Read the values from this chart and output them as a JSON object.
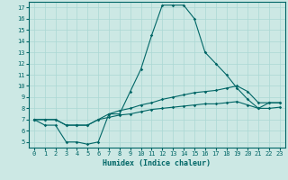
{
  "xlabel": "Humidex (Indice chaleur)",
  "ylabel": "",
  "background_color": "#cce8e4",
  "line_color": "#006666",
  "grid_color": "#aad8d4",
  "xlim": [
    -0.5,
    23.5
  ],
  "ylim": [
    4.5,
    17.5
  ],
  "xticks": [
    0,
    1,
    2,
    3,
    4,
    5,
    6,
    7,
    8,
    9,
    10,
    11,
    12,
    13,
    14,
    15,
    16,
    17,
    18,
    19,
    20,
    21,
    22,
    23
  ],
  "yticks": [
    5,
    6,
    7,
    8,
    9,
    10,
    11,
    12,
    13,
    14,
    15,
    16,
    17
  ],
  "series": [
    {
      "x": [
        0,
        1,
        2,
        3,
        4,
        5,
        6,
        7,
        8,
        9,
        10,
        11,
        12,
        13,
        14,
        15,
        16,
        17,
        18,
        19,
        20,
        21,
        22,
        23
      ],
      "y": [
        7,
        6.5,
        6.5,
        5,
        5,
        4.8,
        5,
        7.5,
        7.5,
        9.5,
        11.5,
        14.5,
        17.2,
        17.2,
        17.2,
        16,
        13,
        12,
        11,
        9.8,
        8.8,
        8,
        8.5,
        8.5
      ]
    },
    {
      "x": [
        0,
        1,
        2,
        3,
        4,
        5,
        6,
        7,
        8,
        9,
        10,
        11,
        12,
        13,
        14,
        15,
        16,
        17,
        18,
        19,
        20,
        21,
        22,
        23
      ],
      "y": [
        7,
        7,
        7,
        6.5,
        6.5,
        6.5,
        7,
        7.5,
        7.8,
        8,
        8.3,
        8.5,
        8.8,
        9,
        9.2,
        9.4,
        9.5,
        9.6,
        9.8,
        10,
        9.5,
        8.5,
        8.5,
        8.5
      ]
    },
    {
      "x": [
        0,
        1,
        2,
        3,
        4,
        5,
        6,
        7,
        8,
        9,
        10,
        11,
        12,
        13,
        14,
        15,
        16,
        17,
        18,
        19,
        20,
        21,
        22,
        23
      ],
      "y": [
        7,
        7,
        7,
        6.5,
        6.5,
        6.5,
        7,
        7.2,
        7.4,
        7.5,
        7.7,
        7.9,
        8.0,
        8.1,
        8.2,
        8.3,
        8.4,
        8.4,
        8.5,
        8.6,
        8.3,
        8.0,
        8.0,
        8.1
      ]
    }
  ]
}
